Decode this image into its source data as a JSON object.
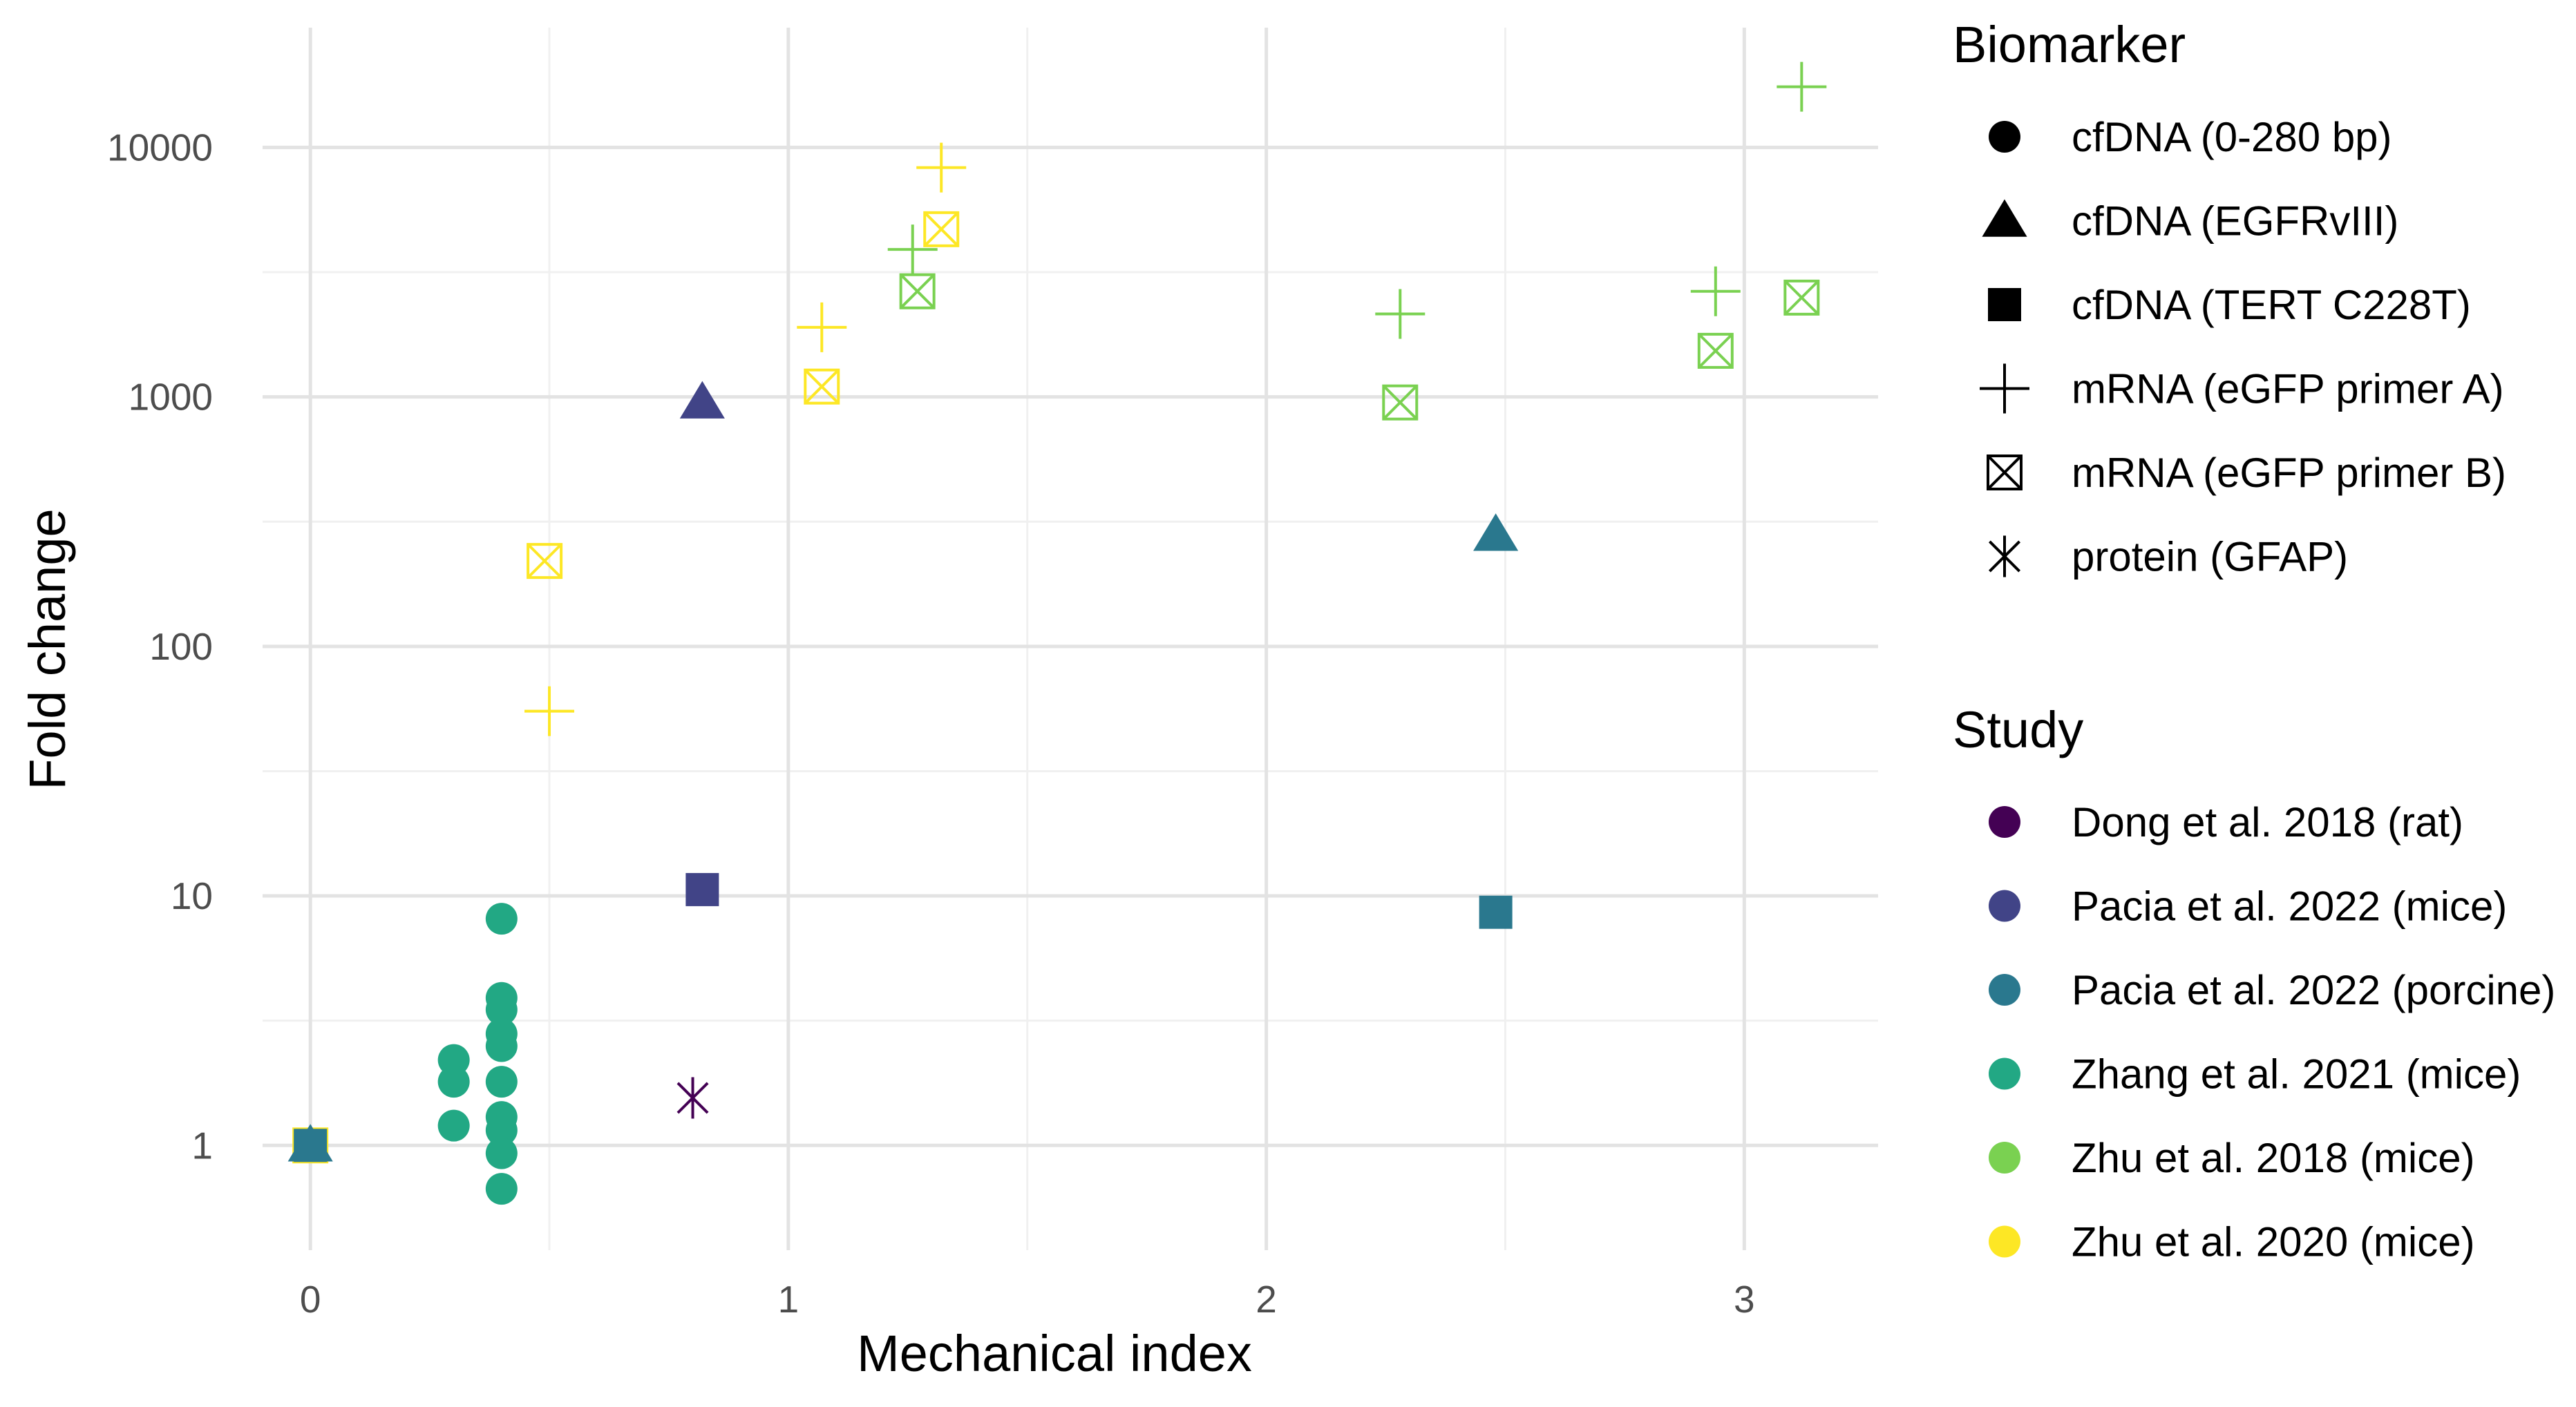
{
  "chart_data": {
    "type": "scatter",
    "title": "",
    "xlabel": "Mechanical index",
    "ylabel": "Fold change",
    "x_scale": "linear",
    "y_scale": "log10",
    "xlim": [
      -0.1,
      3.28
    ],
    "ylim_log10": [
      -0.42,
      4.48
    ],
    "x_ticks": [
      {
        "value": 0,
        "label": "0"
      },
      {
        "value": 1,
        "label": "1"
      },
      {
        "value": 2,
        "label": "2"
      },
      {
        "value": 3,
        "label": "3"
      }
    ],
    "y_ticks": [
      {
        "value": 1,
        "label": "1"
      },
      {
        "value": 10,
        "label": "10"
      },
      {
        "value": 100,
        "label": "100"
      },
      {
        "value": 1000,
        "label": "1000"
      },
      {
        "value": 10000,
        "label": "10000"
      }
    ],
    "grid": true,
    "legend_position": "right",
    "legends": {
      "biomarker": {
        "title": "Biomarker",
        "entries": [
          {
            "key": "cfDNA_short",
            "label": "cfDNA (0-280 bp)",
            "shape": "circle"
          },
          {
            "key": "cfDNA_EGFR",
            "label": "cfDNA (EGFRvIII)",
            "shape": "triangle"
          },
          {
            "key": "cfDNA_TERT",
            "label": "cfDNA (TERT C228T)",
            "shape": "square"
          },
          {
            "key": "mRNA_A",
            "label": "mRNA (eGFP primer A)",
            "shape": "plus"
          },
          {
            "key": "mRNA_B",
            "label": "mRNA (eGFP primer B)",
            "shape": "boxx"
          },
          {
            "key": "protein_GFAP",
            "label": "protein (GFAP)",
            "shape": "asterisk"
          }
        ]
      },
      "study": {
        "title": "Study",
        "entries": [
          {
            "key": "dong2018",
            "label": "Dong et al. 2018 (rat)",
            "color": "#440154"
          },
          {
            "key": "pacia_mice",
            "label": "Pacia et al. 2022 (mice)",
            "color": "#414487"
          },
          {
            "key": "pacia_porcine",
            "label": "Pacia et al. 2022 (porcine)",
            "color": "#2A788E"
          },
          {
            "key": "zhang2021",
            "label": "Zhang et al. 2021 (mice)",
            "color": "#22A884"
          },
          {
            "key": "zhu2018",
            "label": "Zhu et al. 2018 (mice)",
            "color": "#7AD151"
          },
          {
            "key": "zhu2020",
            "label": "Zhu et al. 2020 (mice)",
            "color": "#FDE725"
          }
        ]
      }
    },
    "points": [
      {
        "x": 0,
        "y": 1,
        "biomarker": "cfDNA_short",
        "study": "zhu2020"
      },
      {
        "x": 0,
        "y": 1,
        "biomarker": "mRNA_B",
        "study": "zhu2020"
      },
      {
        "x": 0,
        "y": 1,
        "biomarker": "cfDNA_short",
        "study": "zhang2021"
      },
      {
        "x": 0,
        "y": 1,
        "biomarker": "cfDNA_TERT",
        "study": "pacia_porcine"
      },
      {
        "x": 0,
        "y": 1,
        "biomarker": "cfDNA_EGFR",
        "study": "pacia_porcine"
      },
      {
        "x": 0.3,
        "y": 2.2,
        "biomarker": "cfDNA_short",
        "study": "zhang2021"
      },
      {
        "x": 0.3,
        "y": 1.8,
        "biomarker": "cfDNA_short",
        "study": "zhang2021"
      },
      {
        "x": 0.3,
        "y": 1.2,
        "biomarker": "cfDNA_short",
        "study": "zhang2021"
      },
      {
        "x": 0.4,
        "y": 8.1,
        "biomarker": "cfDNA_short",
        "study": "zhang2021"
      },
      {
        "x": 0.4,
        "y": 3.9,
        "biomarker": "cfDNA_short",
        "study": "zhang2021"
      },
      {
        "x": 0.4,
        "y": 3.5,
        "biomarker": "cfDNA_short",
        "study": "zhang2021"
      },
      {
        "x": 0.4,
        "y": 2.8,
        "biomarker": "cfDNA_short",
        "study": "zhang2021"
      },
      {
        "x": 0.4,
        "y": 2.5,
        "biomarker": "cfDNA_short",
        "study": "zhang2021"
      },
      {
        "x": 0.4,
        "y": 1.8,
        "biomarker": "cfDNA_short",
        "study": "zhang2021"
      },
      {
        "x": 0.4,
        "y": 1.3,
        "biomarker": "cfDNA_short",
        "study": "zhang2021"
      },
      {
        "x": 0.4,
        "y": 1.15,
        "biomarker": "cfDNA_short",
        "study": "zhang2021"
      },
      {
        "x": 0.4,
        "y": 0.93,
        "biomarker": "cfDNA_short",
        "study": "zhang2021"
      },
      {
        "x": 0.4,
        "y": 0.67,
        "biomarker": "cfDNA_short",
        "study": "zhang2021"
      },
      {
        "x": 0.49,
        "y": 220,
        "biomarker": "mRNA_B",
        "study": "zhu2020"
      },
      {
        "x": 0.5,
        "y": 55,
        "biomarker": "mRNA_A",
        "study": "zhu2020"
      },
      {
        "x": 0.8,
        "y": 1.55,
        "biomarker": "protein_GFAP",
        "study": "dong2018"
      },
      {
        "x": 0.82,
        "y": 950,
        "biomarker": "cfDNA_EGFR",
        "study": "pacia_mice"
      },
      {
        "x": 0.82,
        "y": 10.6,
        "biomarker": "cfDNA_TERT",
        "study": "pacia_mice"
      },
      {
        "x": 1.07,
        "y": 1900,
        "biomarker": "mRNA_A",
        "study": "zhu2020"
      },
      {
        "x": 1.07,
        "y": 1100,
        "biomarker": "mRNA_B",
        "study": "zhu2020"
      },
      {
        "x": 1.26,
        "y": 3900,
        "biomarker": "mRNA_A",
        "study": "zhu2018"
      },
      {
        "x": 1.27,
        "y": 2650,
        "biomarker": "mRNA_B",
        "study": "zhu2018"
      },
      {
        "x": 1.32,
        "y": 8300,
        "biomarker": "mRNA_A",
        "study": "zhu2020"
      },
      {
        "x": 1.32,
        "y": 4700,
        "biomarker": "mRNA_B",
        "study": "zhu2020"
      },
      {
        "x": 2.28,
        "y": 2150,
        "biomarker": "mRNA_A",
        "study": "zhu2018"
      },
      {
        "x": 2.28,
        "y": 950,
        "biomarker": "mRNA_B",
        "study": "zhu2018"
      },
      {
        "x": 2.48,
        "y": 280,
        "biomarker": "cfDNA_EGFR",
        "study": "pacia_porcine"
      },
      {
        "x": 2.48,
        "y": 8.6,
        "biomarker": "cfDNA_TERT",
        "study": "pacia_porcine"
      },
      {
        "x": 2.94,
        "y": 2650,
        "biomarker": "mRNA_A",
        "study": "zhu2018"
      },
      {
        "x": 2.94,
        "y": 1530,
        "biomarker": "mRNA_B",
        "study": "zhu2018"
      },
      {
        "x": 3.12,
        "y": 17500,
        "biomarker": "mRNA_A",
        "study": "zhu2018"
      },
      {
        "x": 3.12,
        "y": 2500,
        "biomarker": "mRNA_B",
        "study": "zhu2018"
      }
    ]
  }
}
